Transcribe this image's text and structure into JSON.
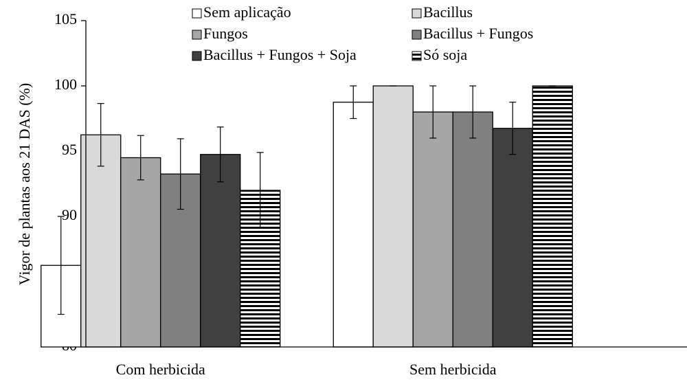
{
  "chart_data": {
    "type": "bar",
    "y_label": "Vigor de plantas aos 21 DAS (%)",
    "categories": [
      "Com herbicida",
      "Sem herbicida"
    ],
    "ylim": [
      80,
      105
    ],
    "yticks": [
      80,
      85,
      90,
      95,
      100,
      105
    ],
    "grid": false,
    "legend": "top",
    "series": [
      {
        "name": "Sem aplicação",
        "color": "#ffffff",
        "values": [
          86.25,
          98.75
        ],
        "errors": [
          3.75,
          1.25
        ]
      },
      {
        "name": "Bacillus",
        "color": "#d9d9d9",
        "values": [
          96.25,
          100
        ],
        "errors": [
          2.4,
          0
        ]
      },
      {
        "name": "Fungos",
        "color": "#a6a6a6",
        "values": [
          94.5,
          98
        ],
        "errors": [
          1.7,
          2
        ]
      },
      {
        "name": "Bacillus + Fungos",
        "color": "#808080",
        "values": [
          93.25,
          98
        ],
        "errors": [
          2.7,
          2
        ]
      },
      {
        "name": "Bacillus + Fungos + Soja",
        "color": "#404040",
        "values": [
          94.75,
          96.75
        ],
        "errors": [
          2.1,
          2
        ]
      },
      {
        "name": "Só soja",
        "color": "#000000",
        "hatch": "horizontal",
        "values": [
          92,
          100
        ],
        "errors": [
          2.9,
          0
        ]
      }
    ]
  }
}
